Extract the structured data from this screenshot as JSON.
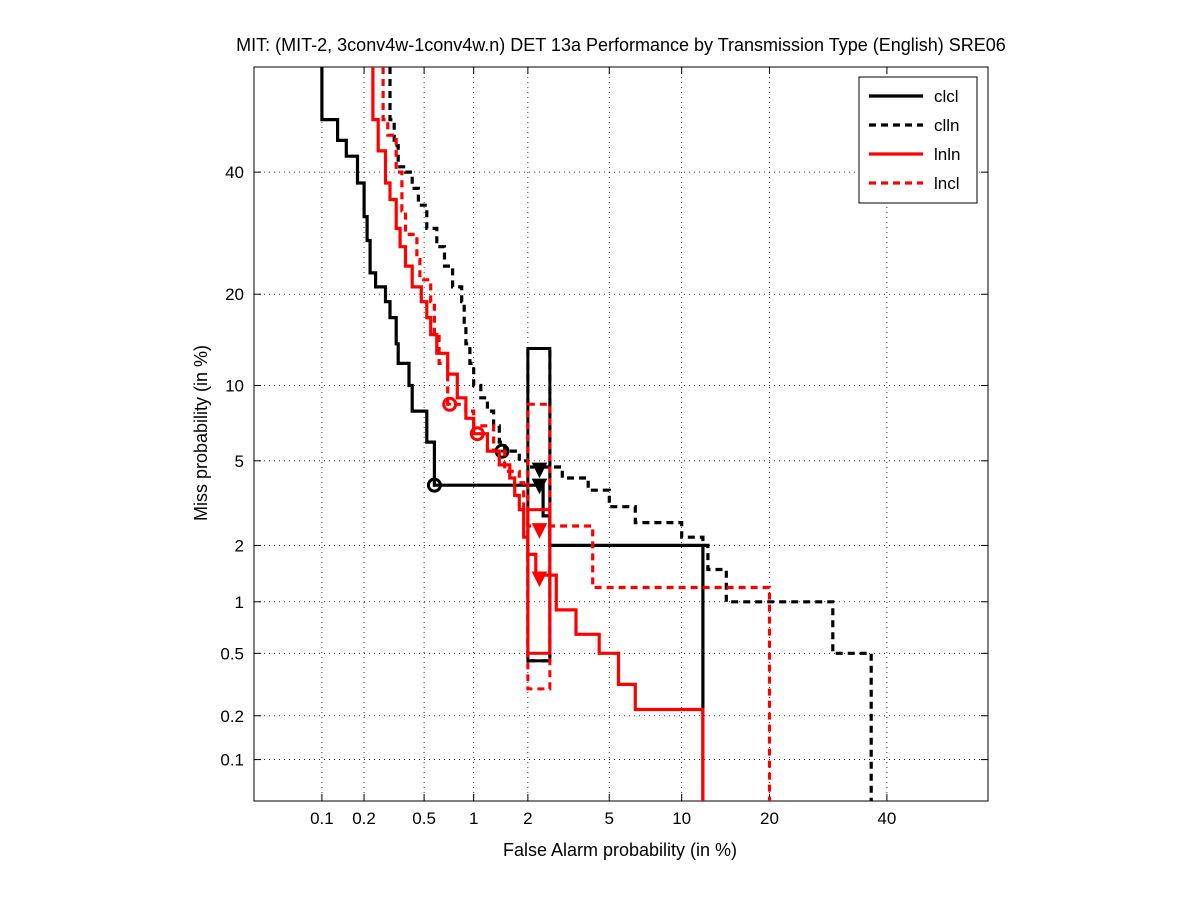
{
  "chart_data": {
    "type": "line",
    "title": "MIT: (MIT-2, 3conv4w-1conv4w.n) DET 13a Performance by Transmission Type (English) SRE06",
    "xlabel": "False Alarm probability (in %)",
    "ylabel": "Miss probability (in %)",
    "x_scale": "normal-deviate (probit)",
    "y_scale": "normal-deviate (probit)",
    "xlim": [
      0.03,
      60
    ],
    "ylim": [
      0.05,
      60
    ],
    "xticks": [
      0.1,
      0.2,
      0.5,
      1,
      2,
      5,
      10,
      20,
      40
    ],
    "xtick_labels": [
      "0.1",
      "0.2",
      "0.5",
      "1",
      "2",
      "5",
      "10",
      "20",
      "40"
    ],
    "yticks": [
      0.1,
      0.2,
      0.5,
      1,
      2,
      5,
      10,
      20,
      40
    ],
    "ytick_labels": [
      "0.1",
      "0.2",
      "0.5",
      "1",
      "2",
      "5",
      "10",
      "20",
      "40"
    ],
    "grid": "dotted",
    "legend_position": "top-right",
    "series": [
      {
        "name": "clcl",
        "color": "#000000",
        "dashed": false,
        "points": [
          [
            0.1,
            60
          ],
          [
            0.1,
            50
          ],
          [
            0.13,
            50
          ],
          [
            0.13,
            46
          ],
          [
            0.15,
            46
          ],
          [
            0.15,
            43
          ],
          [
            0.18,
            43
          ],
          [
            0.18,
            38
          ],
          [
            0.2,
            38
          ],
          [
            0.2,
            32
          ],
          [
            0.21,
            32
          ],
          [
            0.21,
            28
          ],
          [
            0.22,
            28
          ],
          [
            0.22,
            23
          ],
          [
            0.24,
            23
          ],
          [
            0.24,
            21
          ],
          [
            0.28,
            21
          ],
          [
            0.28,
            19
          ],
          [
            0.3,
            19
          ],
          [
            0.3,
            17
          ],
          [
            0.33,
            17
          ],
          [
            0.33,
            14
          ],
          [
            0.34,
            14
          ],
          [
            0.34,
            12
          ],
          [
            0.4,
            12
          ],
          [
            0.4,
            10
          ],
          [
            0.42,
            10
          ],
          [
            0.42,
            8
          ],
          [
            0.52,
            8
          ],
          [
            0.52,
            6
          ],
          [
            0.58,
            6
          ],
          [
            0.58,
            3.9
          ],
          [
            2.4,
            3.9
          ],
          [
            2.4,
            2.8
          ],
          [
            2.6,
            2.8
          ],
          [
            2.6,
            2.0
          ],
          [
            12,
            2.0
          ],
          [
            12,
            0.05
          ]
        ],
        "min_dcf_point": [
          0.58,
          3.9
        ],
        "act_dcf_point": [
          2.3,
          3.9
        ],
        "confidence_box": {
          "x": [
            2.0,
            2.6
          ],
          "y": [
            0.45,
            13.5
          ]
        }
      },
      {
        "name": "clln",
        "color": "#000000",
        "dashed": true,
        "points": [
          [
            0.3,
            60
          ],
          [
            0.3,
            50
          ],
          [
            0.32,
            50
          ],
          [
            0.32,
            45
          ],
          [
            0.34,
            45
          ],
          [
            0.34,
            41
          ],
          [
            0.38,
            41
          ],
          [
            0.38,
            40
          ],
          [
            0.42,
            40
          ],
          [
            0.42,
            37
          ],
          [
            0.46,
            37
          ],
          [
            0.46,
            34
          ],
          [
            0.52,
            34
          ],
          [
            0.52,
            30
          ],
          [
            0.6,
            30
          ],
          [
            0.6,
            27
          ],
          [
            0.67,
            27
          ],
          [
            0.67,
            24
          ],
          [
            0.75,
            24
          ],
          [
            0.75,
            21
          ],
          [
            0.85,
            21
          ],
          [
            0.85,
            19
          ],
          [
            0.88,
            19
          ],
          [
            0.88,
            16
          ],
          [
            0.9,
            16
          ],
          [
            0.9,
            14
          ],
          [
            0.95,
            14
          ],
          [
            0.95,
            12
          ],
          [
            1,
            12
          ],
          [
            1,
            10
          ],
          [
            1.1,
            10
          ],
          [
            1.1,
            9
          ],
          [
            1.2,
            9
          ],
          [
            1.2,
            8
          ],
          [
            1.3,
            8
          ],
          [
            1.3,
            7
          ],
          [
            1.4,
            7
          ],
          [
            1.4,
            6
          ],
          [
            1.5,
            6
          ],
          [
            1.5,
            5.5
          ],
          [
            1.8,
            5.5
          ],
          [
            1.8,
            5
          ],
          [
            2.0,
            5
          ],
          [
            2.0,
            4.7
          ],
          [
            3.0,
            4.7
          ],
          [
            3.0,
            4.2
          ],
          [
            4.0,
            4.2
          ],
          [
            4.0,
            3.7
          ],
          [
            5.0,
            3.7
          ],
          [
            5.0,
            3.1
          ],
          [
            6.5,
            3.1
          ],
          [
            6.5,
            2.6
          ],
          [
            10,
            2.6
          ],
          [
            10,
            2.2
          ],
          [
            12,
            2.2
          ],
          [
            12,
            2.0
          ],
          [
            12.5,
            2.0
          ],
          [
            12.5,
            1.5
          ],
          [
            14.5,
            1.5
          ],
          [
            14.5,
            1.0
          ],
          [
            30,
            1.0
          ],
          [
            30,
            0.5
          ],
          [
            37,
            0.5
          ],
          [
            37,
            0.05
          ]
        ],
        "min_dcf_point": [
          1.45,
          5.5
        ],
        "act_dcf_point": [
          2.3,
          4.6
        ],
        "confidence_box": {
          "x": [
            2.0,
            2.6
          ],
          "y": [
            0.45,
            13.5
          ]
        }
      },
      {
        "name": "lnln",
        "color": "#ff0000",
        "dashed": false,
        "points": [
          [
            0.23,
            60
          ],
          [
            0.23,
            50
          ],
          [
            0.25,
            50
          ],
          [
            0.25,
            44
          ],
          [
            0.28,
            44
          ],
          [
            0.28,
            38
          ],
          [
            0.3,
            38
          ],
          [
            0.3,
            35
          ],
          [
            0.33,
            35
          ],
          [
            0.33,
            30
          ],
          [
            0.35,
            30
          ],
          [
            0.35,
            27
          ],
          [
            0.38,
            27
          ],
          [
            0.38,
            24
          ],
          [
            0.42,
            24
          ],
          [
            0.42,
            21
          ],
          [
            0.48,
            21
          ],
          [
            0.48,
            19
          ],
          [
            0.52,
            19
          ],
          [
            0.52,
            17
          ],
          [
            0.55,
            17
          ],
          [
            0.55,
            15
          ],
          [
            0.6,
            15
          ],
          [
            0.6,
            13
          ],
          [
            0.7,
            13
          ],
          [
            0.7,
            11
          ],
          [
            0.8,
            11
          ],
          [
            0.8,
            9
          ],
          [
            0.9,
            9
          ],
          [
            0.9,
            7.5
          ],
          [
            1,
            7.5
          ],
          [
            1,
            6.5
          ],
          [
            1.2,
            6.5
          ],
          [
            1.2,
            5.5
          ],
          [
            1.4,
            5.5
          ],
          [
            1.4,
            4.8
          ],
          [
            1.6,
            4.8
          ],
          [
            1.6,
            4.2
          ],
          [
            1.7,
            4.2
          ],
          [
            1.7,
            3.5
          ],
          [
            1.8,
            3.5
          ],
          [
            1.8,
            3
          ],
          [
            1.9,
            3
          ],
          [
            1.9,
            2.2
          ],
          [
            2.0,
            2.2
          ],
          [
            2.0,
            1.8
          ],
          [
            2.2,
            1.8
          ],
          [
            2.2,
            1.4
          ],
          [
            2.8,
            1.4
          ],
          [
            2.8,
            0.9
          ],
          [
            3.5,
            0.9
          ],
          [
            3.5,
            0.65
          ],
          [
            4.5,
            0.65
          ],
          [
            4.5,
            0.5
          ],
          [
            5.5,
            0.5
          ],
          [
            5.5,
            0.32
          ],
          [
            6.5,
            0.32
          ],
          [
            6.5,
            0.22
          ],
          [
            12,
            0.22
          ],
          [
            12,
            0.05
          ]
        ],
        "min_dcf_point": [
          1.05,
          6.5
        ],
        "act_dcf_point": [
          2.3,
          1.35
        ],
        "confidence_box": {
          "x": [
            2.0,
            2.6
          ],
          "y": [
            0.5,
            3.0
          ]
        }
      },
      {
        "name": "lncl",
        "color": "#ff0000",
        "dashed": true,
        "points": [
          [
            0.27,
            60
          ],
          [
            0.27,
            50
          ],
          [
            0.29,
            50
          ],
          [
            0.29,
            47
          ],
          [
            0.33,
            47
          ],
          [
            0.33,
            40
          ],
          [
            0.36,
            40
          ],
          [
            0.36,
            33
          ],
          [
            0.38,
            33
          ],
          [
            0.38,
            29
          ],
          [
            0.45,
            29
          ],
          [
            0.45,
            25
          ],
          [
            0.47,
            25
          ],
          [
            0.47,
            22
          ],
          [
            0.55,
            22
          ],
          [
            0.55,
            19
          ],
          [
            0.58,
            19
          ],
          [
            0.58,
            15
          ],
          [
            0.62,
            15
          ],
          [
            0.62,
            12
          ],
          [
            0.7,
            12
          ],
          [
            0.7,
            8.5
          ],
          [
            0.9,
            8.5
          ],
          [
            0.9,
            8
          ],
          [
            1.0,
            8
          ],
          [
            1.0,
            7
          ],
          [
            1.3,
            7
          ],
          [
            1.3,
            5.5
          ],
          [
            1.5,
            5.5
          ],
          [
            1.5,
            4.5
          ],
          [
            1.8,
            4.5
          ],
          [
            1.8,
            4.0
          ],
          [
            1.9,
            4.0
          ],
          [
            1.9,
            3.0
          ],
          [
            2.0,
            3.0
          ],
          [
            2.0,
            2.5
          ],
          [
            4.2,
            2.5
          ],
          [
            4.2,
            1.2
          ],
          [
            20,
            1.2
          ],
          [
            20,
            0.05
          ]
        ],
        "min_dcf_point": [
          0.72,
          8.5
        ],
        "act_dcf_point": [
          2.3,
          2.4
        ],
        "confidence_box": {
          "x": [
            2.0,
            2.6
          ],
          "y": [
            0.3,
            8.5
          ]
        }
      }
    ]
  }
}
